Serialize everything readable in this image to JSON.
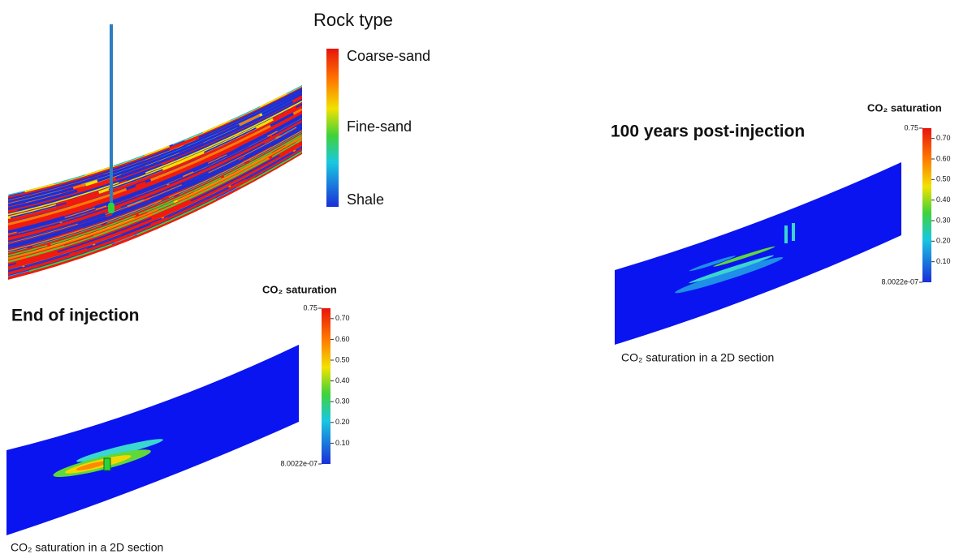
{
  "rock_legend": {
    "title": "Rock type",
    "labels": [
      "Coarse-sand",
      "Fine-sand",
      "Shale"
    ]
  },
  "panels": [
    {
      "title": "End of injection",
      "colorbar": {
        "title": "CO₂ saturation",
        "ticks": [
          0.75,
          {
            "value": 0.7,
            "label": "0.70"
          },
          {
            "value": 0.6,
            "label": "0.60"
          },
          {
            "value": 0.5,
            "label": "0.50"
          },
          {
            "value": 0.4,
            "label": "0.40"
          },
          {
            "value": 0.3,
            "label": "0.30"
          },
          {
            "value": 0.2,
            "label": "0.20"
          },
          {
            "value": 0.1,
            "label": "0.10"
          },
          {
            "value": 8.0022e-07,
            "label": "8.0022e-07"
          }
        ]
      },
      "caption": "CO₂ saturation in a 2D section"
    },
    {
      "title": "100 years post-injection",
      "colorbar": {
        "title": "CO₂ saturation",
        "ticks": [
          0.75,
          {
            "value": 0.7,
            "label": "0.70"
          },
          {
            "value": 0.6,
            "label": "0.60"
          },
          {
            "value": 0.5,
            "label": "0.50"
          },
          {
            "value": 0.4,
            "label": "0.40"
          },
          {
            "value": 0.3,
            "label": "0.30"
          },
          {
            "value": 0.2,
            "label": "0.20"
          },
          {
            "value": 0.1,
            "label": "0.10"
          },
          {
            "value": 8.0022e-07,
            "label": "8.0022e-07"
          }
        ]
      },
      "caption": "CO₂ saturation in a 2D section"
    }
  ]
}
